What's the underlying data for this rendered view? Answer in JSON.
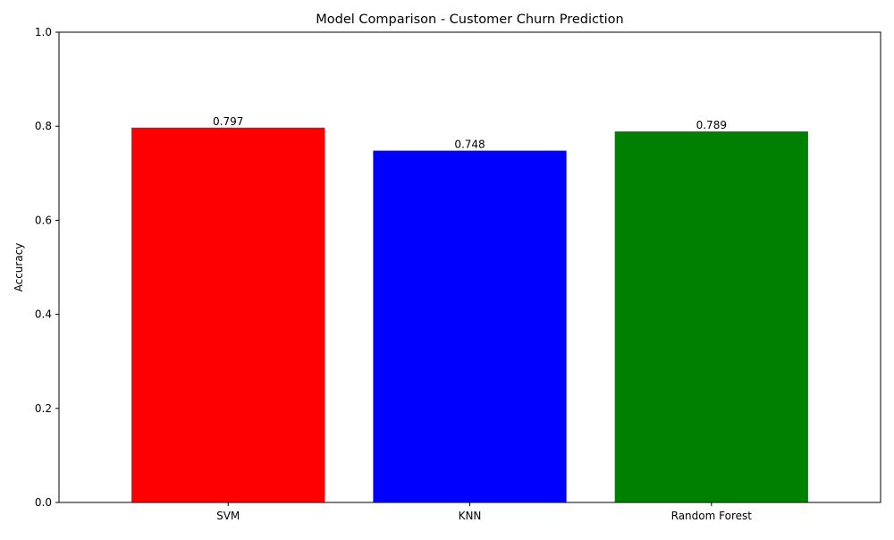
{
  "chart_data": {
    "type": "bar",
    "title": "Model Comparison - Customer Churn Prediction",
    "xlabel": "",
    "ylabel": "Accuracy",
    "categories": [
      "SVM",
      "KNN",
      "Random Forest"
    ],
    "values": [
      0.797,
      0.748,
      0.789
    ],
    "data_labels": [
      "0.797",
      "0.748",
      "0.789"
    ],
    "colors": [
      "#ff0000",
      "#0000ff",
      "#008000"
    ],
    "ylim": [
      0,
      1
    ],
    "yticks": [
      0.0,
      0.2,
      0.4,
      0.6,
      0.8,
      1.0
    ],
    "ytick_labels": [
      "0.0",
      "0.2",
      "0.4",
      "0.6",
      "0.8",
      "1.0"
    ],
    "grid": false,
    "legend": "none"
  }
}
